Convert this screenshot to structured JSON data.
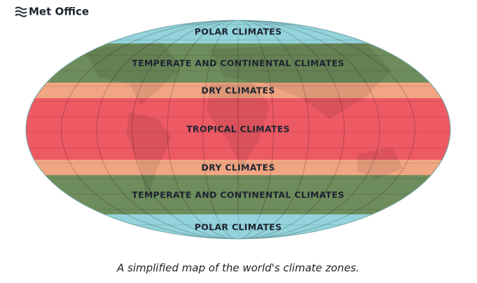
{
  "header": {
    "logo": "Met Office"
  },
  "map": {
    "zones": [
      {
        "label": "POLAR CLIMATES",
        "color": "#93d3dc"
      },
      {
        "label": "TEMPERATE AND CONTINENTAL CLIMATES",
        "color": "#6e8d5c"
      },
      {
        "label": "DRY CLIMATES",
        "color": "#f2a582"
      },
      {
        "label": "TROPICAL CLIMATES",
        "color": "#ee5a64"
      },
      {
        "label": "DRY CLIMATES",
        "color": "#f2a582"
      },
      {
        "label": "TEMPERATE AND CONTINENTAL CLIMATES",
        "color": "#6e8d5c"
      },
      {
        "label": "POLAR CLIMATES",
        "color": "#93d3dc"
      }
    ]
  },
  "caption": "A simplified map of the world's climate zones."
}
